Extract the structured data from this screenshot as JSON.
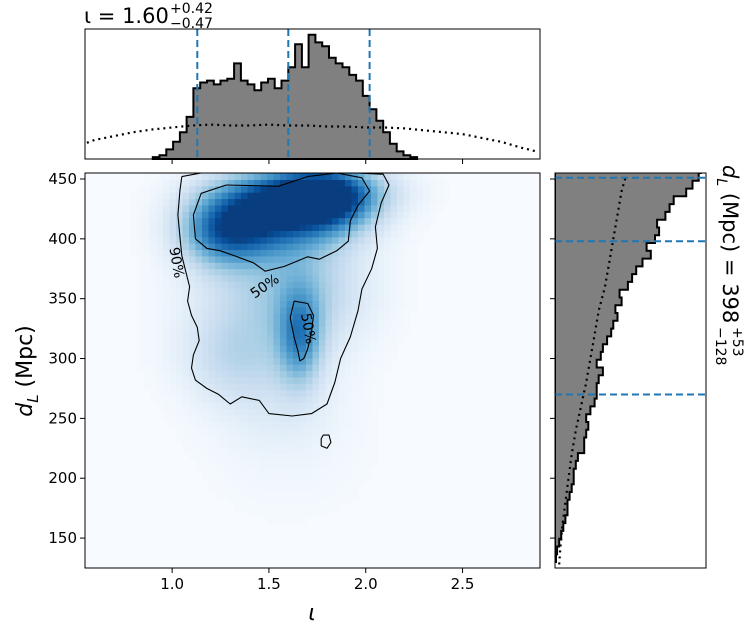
{
  "figure": {
    "top_title": {
      "symbol": "ι",
      "median": "1.60",
      "plus": "+0.42",
      "minus": "−0.47"
    },
    "right_title": {
      "symbol": "d",
      "sub": "L",
      "unit": "(Mpc)",
      "median": "398",
      "plus": "+53",
      "minus": "−128"
    }
  },
  "chart_data": [
    {
      "id": "joint",
      "type": "heatmap",
      "xlabel": "ι",
      "ylabel_symbol": "d",
      "ylabel_sub": "L",
      "ylabel_unit": "(Mpc)",
      "xlim": [
        0.55,
        2.9
      ],
      "ylim": [
        125,
        455
      ],
      "xticks": [
        {
          "value": 1.0,
          "label": "1.0"
        },
        {
          "value": 1.5,
          "label": "1.5"
        },
        {
          "value": 2.0,
          "label": "2.0"
        },
        {
          "value": 2.5,
          "label": "2.5"
        }
      ],
      "yticks": [
        {
          "value": 150,
          "label": "150"
        },
        {
          "value": 200,
          "label": "200"
        },
        {
          "value": 250,
          "label": "250"
        },
        {
          "value": 300,
          "label": "300"
        },
        {
          "value": 350,
          "label": "350"
        },
        {
          "value": 400,
          "label": "400"
        },
        {
          "value": 450,
          "label": "450"
        }
      ],
      "colormap": "Blues",
      "density_blobs": [
        {
          "x": 1.8,
          "y": 432,
          "sx": 0.18,
          "sy": 20,
          "w": 1.0
        },
        {
          "x": 1.45,
          "y": 418,
          "sx": 0.22,
          "sy": 22,
          "w": 0.85
        },
        {
          "x": 1.25,
          "y": 405,
          "sx": 0.15,
          "sy": 20,
          "w": 0.55
        },
        {
          "x": 1.68,
          "y": 440,
          "sx": 0.28,
          "sy": 14,
          "w": 0.55
        },
        {
          "x": 1.66,
          "y": 318,
          "sx": 0.08,
          "sy": 28,
          "w": 0.6
        },
        {
          "x": 1.42,
          "y": 345,
          "sx": 0.25,
          "sy": 45,
          "w": 0.25
        },
        {
          "x": 1.72,
          "y": 360,
          "sx": 0.22,
          "sy": 35,
          "w": 0.3
        },
        {
          "x": 1.3,
          "y": 300,
          "sx": 0.18,
          "sy": 25,
          "w": 0.18
        },
        {
          "x": 1.55,
          "y": 265,
          "sx": 0.22,
          "sy": 30,
          "w": 0.1
        },
        {
          "x": 1.6,
          "y": 220,
          "sx": 0.3,
          "sy": 40,
          "w": 0.04
        }
      ],
      "contours": [
        {
          "level": "90%",
          "points": [
            [
              1.05,
              452
            ],
            [
              1.15,
              455
            ],
            [
              1.4,
              455
            ],
            [
              1.7,
              455
            ],
            [
              1.95,
              455
            ],
            [
              2.09,
              454
            ],
            [
              2.12,
              445
            ],
            [
              2.08,
              430
            ],
            [
              2.05,
              410
            ],
            [
              2.06,
              392
            ],
            [
              2.03,
              375
            ],
            [
              1.98,
              358
            ],
            [
              1.96,
              340
            ],
            [
              1.92,
              318
            ],
            [
              1.87,
              300
            ],
            [
              1.84,
              280
            ],
            [
              1.8,
              262
            ],
            [
              1.72,
              254
            ],
            [
              1.62,
              252
            ],
            [
              1.5,
              254
            ],
            [
              1.45,
              265
            ],
            [
              1.36,
              268
            ],
            [
              1.3,
              262
            ],
            [
              1.24,
              270
            ],
            [
              1.18,
              275
            ],
            [
              1.12,
              282
            ],
            [
              1.1,
              292
            ],
            [
              1.11,
              303
            ],
            [
              1.14,
              315
            ],
            [
              1.13,
              326
            ],
            [
              1.1,
              336
            ],
            [
              1.08,
              348
            ],
            [
              1.09,
              360
            ],
            [
              1.07,
              373
            ],
            [
              1.05,
              386
            ],
            [
              1.04,
              402
            ],
            [
              1.03,
              420
            ],
            [
              1.04,
              440
            ],
            [
              1.05,
              452
            ]
          ]
        },
        {
          "level": "50%",
          "points": [
            [
              1.12,
              400
            ],
            [
              1.11,
              420
            ],
            [
              1.15,
              438
            ],
            [
              1.28,
              445
            ],
            [
              1.55,
              444
            ],
            [
              1.7,
              452
            ],
            [
              1.85,
              455
            ],
            [
              1.98,
              451
            ],
            [
              2.02,
              440
            ],
            [
              1.96,
              428
            ],
            [
              1.92,
              415
            ],
            [
              1.91,
              398
            ],
            [
              1.85,
              390
            ],
            [
              1.76,
              383
            ],
            [
              1.7,
              385
            ],
            [
              1.58,
              377
            ],
            [
              1.48,
              373
            ],
            [
              1.42,
              380
            ],
            [
              1.32,
              386
            ],
            [
              1.25,
              390
            ],
            [
              1.18,
              392
            ],
            [
              1.12,
              400
            ]
          ]
        },
        {
          "level": "50%",
          "points": [
            [
              1.63,
              348
            ],
            [
              1.7,
              346
            ],
            [
              1.73,
              336
            ],
            [
              1.72,
              322
            ],
            [
              1.7,
              308
            ],
            [
              1.68,
              300
            ],
            [
              1.66,
              298
            ],
            [
              1.65,
              306
            ],
            [
              1.63,
              318
            ],
            [
              1.61,
              334
            ],
            [
              1.63,
              348
            ]
          ]
        },
        {
          "level": "",
          "points": [
            [
              1.78,
              236
            ],
            [
              1.81,
              236
            ],
            [
              1.82,
              230
            ],
            [
              1.8,
              225
            ],
            [
              1.77,
              227
            ],
            [
              1.77,
              233
            ],
            [
              1.78,
              236
            ]
          ]
        }
      ],
      "contour_labels": [
        {
          "text": "90%",
          "x": 1.02,
          "y": 380,
          "rotate": 80
        },
        {
          "text": "50%",
          "x": 1.48,
          "y": 360,
          "rotate": -35
        },
        {
          "text": "50%",
          "x": 1.7,
          "y": 325,
          "rotate": 80
        }
      ]
    },
    {
      "id": "marginal-x",
      "type": "area",
      "xlim": [
        0.55,
        2.9
      ],
      "bins": {
        "start": 0.9,
        "width": 0.035,
        "values": [
          0.02,
          0.04,
          0.1,
          0.18,
          0.28,
          0.44,
          0.74,
          0.8,
          0.82,
          0.78,
          0.82,
          0.84,
          1.0,
          0.82,
          0.78,
          0.72,
          0.8,
          0.84,
          0.74,
          0.82,
          0.96,
          1.2,
          0.96,
          1.3,
          1.22,
          1.18,
          1.06,
          1.0,
          0.96,
          0.88,
          0.82,
          0.66,
          0.52,
          0.4,
          0.28,
          0.16,
          0.08,
          0.04,
          0.02
        ]
      },
      "prior": [
        [
          0.56,
          0.17
        ],
        [
          0.6,
          0.2
        ],
        [
          0.7,
          0.24
        ],
        [
          0.8,
          0.28
        ],
        [
          0.9,
          0.31
        ],
        [
          1.0,
          0.33
        ],
        [
          1.1,
          0.35
        ],
        [
          1.2,
          0.36
        ],
        [
          1.3,
          0.35
        ],
        [
          1.4,
          0.35
        ],
        [
          1.5,
          0.36
        ],
        [
          1.6,
          0.35
        ],
        [
          1.7,
          0.35
        ],
        [
          1.8,
          0.34
        ],
        [
          1.9,
          0.34
        ],
        [
          2.0,
          0.33
        ],
        [
          2.1,
          0.33
        ],
        [
          2.2,
          0.32
        ],
        [
          2.3,
          0.3
        ],
        [
          2.4,
          0.28
        ],
        [
          2.5,
          0.26
        ],
        [
          2.6,
          0.22
        ],
        [
          2.7,
          0.18
        ],
        [
          2.8,
          0.12
        ],
        [
          2.88,
          0.08
        ]
      ],
      "vlines": [
        1.13,
        1.6,
        2.02
      ],
      "ymax": 1.36
    },
    {
      "id": "marginal-y",
      "type": "area",
      "ylim": [
        125,
        455
      ],
      "bins": {
        "start": 130,
        "width": 6.5,
        "values": [
          0.01,
          0.02,
          0.04,
          0.06,
          0.08,
          0.1,
          0.12,
          0.12,
          0.14,
          0.16,
          0.18,
          0.18,
          0.2,
          0.22,
          0.28,
          0.28,
          0.3,
          0.32,
          0.3,
          0.34,
          0.38,
          0.4,
          0.4,
          0.42,
          0.46,
          0.4,
          0.44,
          0.46,
          0.5,
          0.54,
          0.56,
          0.6,
          0.58,
          0.64,
          0.62,
          0.7,
          0.74,
          0.78,
          0.84,
          0.92,
          0.88,
          0.96,
          1.0,
          0.98,
          1.06,
          1.1,
          1.14,
          1.26,
          1.32,
          1.38,
          1.4
        ]
      },
      "prior": [
        [
          128,
          0.04
        ],
        [
          140,
          0.05
        ],
        [
          160,
          0.07
        ],
        [
          180,
          0.1
        ],
        [
          200,
          0.13
        ],
        [
          220,
          0.16
        ],
        [
          240,
          0.2
        ],
        [
          260,
          0.25
        ],
        [
          280,
          0.3
        ],
        [
          300,
          0.34
        ],
        [
          320,
          0.38
        ],
        [
          340,
          0.42
        ],
        [
          360,
          0.48
        ],
        [
          380,
          0.52
        ],
        [
          400,
          0.56
        ],
        [
          420,
          0.6
        ],
        [
          440,
          0.64
        ],
        [
          452,
          0.68
        ]
      ],
      "hlines": [
        270,
        398,
        451
      ],
      "xmax": 1.45
    }
  ]
}
